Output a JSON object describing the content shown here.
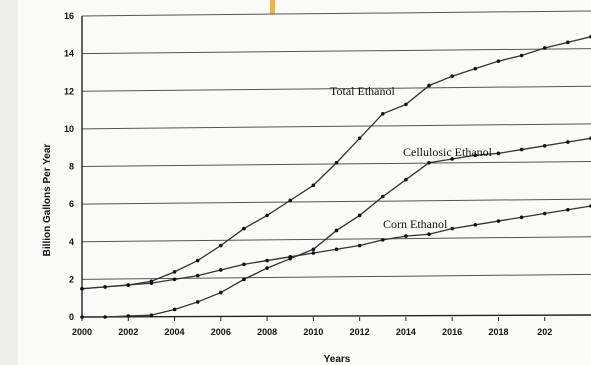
{
  "chart_data": {
    "type": "line",
    "xlabel": "Years",
    "ylabel": "Billion Gallons Per Year",
    "xlim": [
      2000,
      2022
    ],
    "ylim": [
      0,
      16
    ],
    "x_ticks": [
      "2000",
      "2002",
      "2004",
      "2006",
      "2008",
      "2010",
      "2012",
      "2014",
      "2016",
      "2018",
      "202"
    ],
    "y_ticks": [
      "0",
      "2",
      "4",
      "6",
      "8",
      "10",
      "12",
      "14",
      "16"
    ],
    "grid": "horizontal",
    "x": [
      2000,
      2001,
      2002,
      2003,
      2004,
      2005,
      2006,
      2007,
      2008,
      2009,
      2010,
      2011,
      2012,
      2013,
      2014,
      2015,
      2016,
      2017,
      2018,
      2019,
      2020,
      2021,
      2022
    ],
    "series": [
      {
        "name": "Total Ethanol",
        "values": [
          1.5,
          1.6,
          1.7,
          1.9,
          2.4,
          3.0,
          3.8,
          4.7,
          5.4,
          6.2,
          7.0,
          8.2,
          9.5,
          10.8,
          11.3,
          12.3,
          12.8,
          13.2,
          13.6,
          13.9,
          14.3,
          14.6,
          14.9
        ],
        "color": "#333333"
      },
      {
        "name": "Cellulosic Ethanol",
        "values": [
          0,
          0,
          0.05,
          0.1,
          0.4,
          0.8,
          1.3,
          2.0,
          2.6,
          3.1,
          3.6,
          4.6,
          5.4,
          6.4,
          7.3,
          8.2,
          8.4,
          8.6,
          8.7,
          8.9,
          9.1,
          9.3,
          9.5
        ],
        "color": "#333333"
      },
      {
        "name": "Corn Ethanol",
        "values": [
          1.5,
          1.6,
          1.7,
          1.8,
          2.0,
          2.2,
          2.5,
          2.8,
          3.0,
          3.2,
          3.4,
          3.6,
          3.8,
          4.1,
          4.3,
          4.4,
          4.7,
          4.9,
          5.1,
          5.3,
          5.5,
          5.7,
          5.9
        ],
        "color": "#333333"
      }
    ],
    "annotations": [
      {
        "text": "Total Ethanol",
        "series": 0
      },
      {
        "text": "Cellulosic Ethanol",
        "series": 1
      },
      {
        "text": "Corn Ethanol",
        "series": 2
      }
    ]
  }
}
